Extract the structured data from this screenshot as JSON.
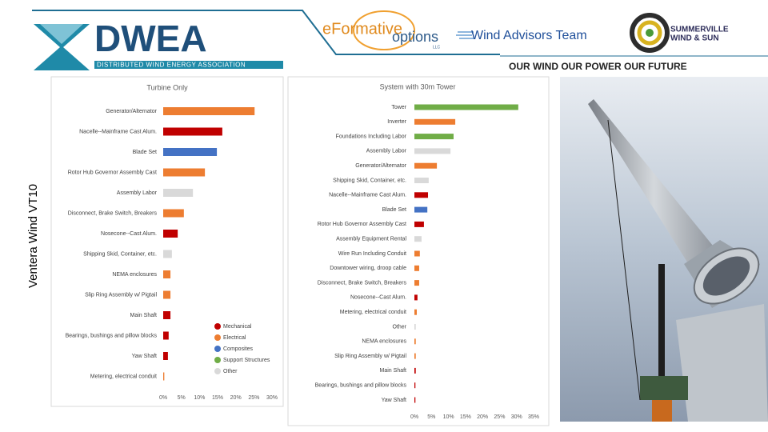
{
  "header": {
    "logo_title": "DWEA",
    "logo_subtitle": "DISTRIBUTED WIND ENERGY ASSOCIATION",
    "partner_1_a": "eFormative",
    "partner_1_b": "options",
    "partner_1_c": "LLC",
    "partner_2": "Wind Advisors Team",
    "partner_3_a": "SUMMERVILLE",
    "partner_3_b": "WIND & SUN",
    "tagline": "OUR WIND OUR POWER OUR FUTURE"
  },
  "side_title": "Ventera Wind VT10",
  "chart_data": [
    {
      "type": "bar",
      "orientation": "horizontal",
      "title": "Turbine Only",
      "categories": [
        "Generator/Alternator",
        "Nacelle--Mainframe Cast Alum.",
        "Blade Set",
        "Rotor Hub Governor Assembly Cast",
        "Assembly Labor",
        "Disconnect, Brake Switch, Breakers",
        "Nosecone--Cast Alum.",
        "Shipping Skid, Container, etc.",
        "NEMA enclosures",
        "Slip Ring Assembly w/ Pigtail",
        "Main Shaft",
        "Bearings, bushings and pillow blocks",
        "Yaw Shaft",
        "Metering, electrical conduit"
      ],
      "values": [
        25.2,
        16.3,
        14.8,
        11.5,
        8.2,
        5.7,
        4.0,
        2.4,
        2.0,
        2.0,
        2.0,
        1.5,
        1.3,
        0.3
      ],
      "colors": [
        "#ed7d31",
        "#c00000",
        "#4472c4",
        "#ed7d31",
        "#d9d9d9",
        "#ed7d31",
        "#c00000",
        "#d9d9d9",
        "#ed7d31",
        "#ed7d31",
        "#c00000",
        "#c00000",
        "#c00000",
        "#ed7d31"
      ],
      "xlim": [
        0,
        30
      ],
      "xticks": [
        {
          "value": 0,
          "label": "0%"
        },
        {
          "value": 5,
          "label": "5%"
        },
        {
          "value": 10,
          "label": "10%"
        },
        {
          "value": 15,
          "label": "15%"
        },
        {
          "value": 20,
          "label": "20%"
        },
        {
          "value": 25,
          "label": "25%"
        },
        {
          "value": 30,
          "label": "30%"
        }
      ],
      "legend": [
        {
          "name": "Mechanical",
          "color": "#c00000"
        },
        {
          "name": "Electrical",
          "color": "#ed7d31"
        },
        {
          "name": "Composites",
          "color": "#4472c4"
        },
        {
          "name": "Support Structures",
          "color": "#70ad47"
        },
        {
          "name": "Other",
          "color": "#d9d9d9"
        }
      ]
    },
    {
      "type": "bar",
      "orientation": "horizontal",
      "title": "System with 30m Tower",
      "categories": [
        "Tower",
        "Inverter",
        "Foundations Including Labor",
        "Assembly Labor",
        "Generator/Alternator",
        "Shipping Skid, Container, etc.",
        "Nacelle--Mainframe Cast Alum.",
        "Blade Set",
        "Rotor Hub Governor Assembly Cast",
        "Assembly Equipment Rental",
        "Wire Run Including Conduit",
        "Downtower wiring, droop cable",
        "Disconnect, Brake Switch, Breakers",
        "Nosecone--Cast Alum.",
        "Metering, electrical conduit",
        "Other",
        "NEMA enclosures",
        "Slip Ring Assembly w/ Pigtail",
        "Main Shaft",
        "Bearings, bushings and pillow blocks",
        "Yaw Shaft"
      ],
      "values": [
        30.5,
        12.0,
        11.5,
        10.6,
        6.6,
        4.2,
        4.0,
        3.8,
        2.8,
        2.1,
        1.6,
        1.4,
        1.4,
        0.9,
        0.7,
        0.4,
        0.4,
        0.4,
        0.4,
        0.3,
        0.3
      ],
      "colors": [
        "#70ad47",
        "#ed7d31",
        "#70ad47",
        "#d9d9d9",
        "#ed7d31",
        "#d9d9d9",
        "#c00000",
        "#4472c4",
        "#c00000",
        "#d9d9d9",
        "#ed7d31",
        "#ed7d31",
        "#ed7d31",
        "#c00000",
        "#ed7d31",
        "#d9d9d9",
        "#ed7d31",
        "#ed7d31",
        "#c00000",
        "#c00000",
        "#c00000"
      ],
      "xlim": [
        0,
        35
      ],
      "xticks": [
        {
          "value": 0,
          "label": "0%"
        },
        {
          "value": 5,
          "label": "5%"
        },
        {
          "value": 10,
          "label": "10%"
        },
        {
          "value": 15,
          "label": "15%"
        },
        {
          "value": 20,
          "label": "20%"
        },
        {
          "value": 25,
          "label": "25%"
        },
        {
          "value": 30,
          "label": "30%"
        },
        {
          "value": 35,
          "label": "35%"
        }
      ]
    }
  ]
}
